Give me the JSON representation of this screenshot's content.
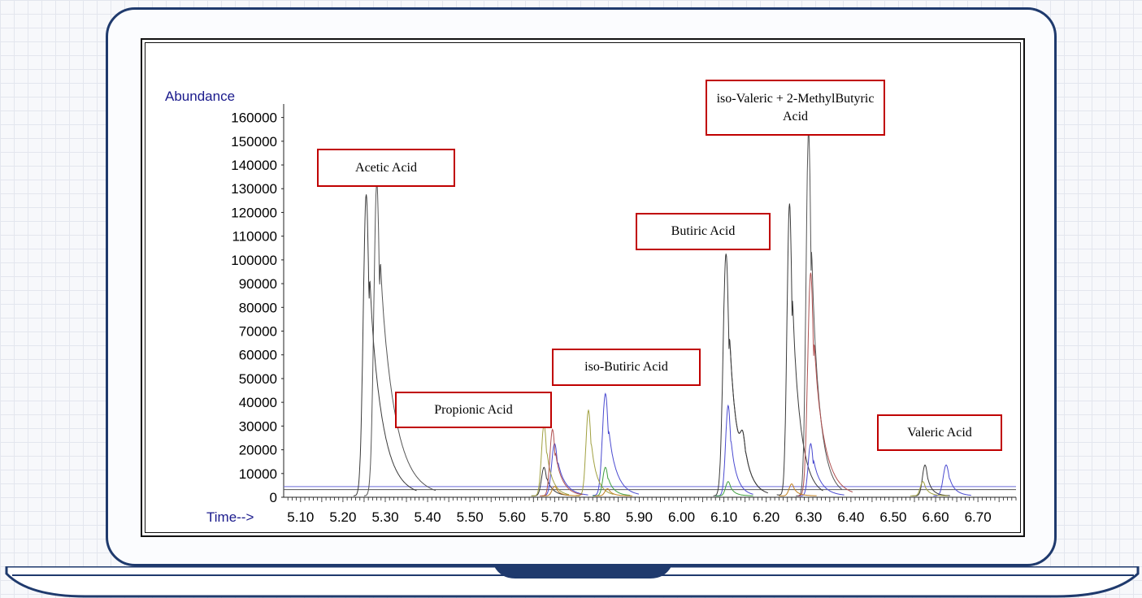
{
  "chart_data": {
    "type": "line",
    "ylabel": "Abundance",
    "xlabel": "Time-->",
    "xlim": [
      5.06,
      6.79
    ],
    "ylim": [
      0,
      165000
    ],
    "x_ticks": [
      "5.10",
      "5.20",
      "5.30",
      "5.40",
      "5.50",
      "5.60",
      "5.70",
      "5.80",
      "5.90",
      "6.00",
      "6.10",
      "6.20",
      "6.30",
      "6.40",
      "6.50",
      "6.60",
      "6.70"
    ],
    "y_ticks": [
      "0",
      "10000",
      "20000",
      "30000",
      "40000",
      "50000",
      "60000",
      "70000",
      "80000",
      "90000",
      "100000",
      "110000",
      "120000",
      "130000",
      "140000",
      "150000",
      "160000"
    ],
    "baselines": {
      "blue": 4500,
      "black": 3200
    },
    "series": [
      {
        "color": "#3a3a3a",
        "peaks": [
          {
            "x": 5.255,
            "y": 127000,
            "w": 0.007,
            "tail": 0.03
          },
          {
            "x": 5.675,
            "y": 12000,
            "w": 0.006,
            "tail": 0.015
          },
          {
            "x": 6.105,
            "y": 102000,
            "w": 0.007,
            "tail": 0.022
          },
          {
            "x": 6.145,
            "y": 12000,
            "w": 0.006,
            "tail": 0.015
          },
          {
            "x": 6.255,
            "y": 123000,
            "w": 0.006,
            "tail": 0.02
          },
          {
            "x": 6.575,
            "y": 13000,
            "w": 0.006,
            "tail": 0.012
          }
        ]
      },
      {
        "color": "#555555",
        "peaks": [
          {
            "x": 5.28,
            "y": 132000,
            "w": 0.007,
            "tail": 0.035
          },
          {
            "x": 6.3,
            "y": 154000,
            "w": 0.006,
            "tail": 0.02
          }
        ]
      },
      {
        "color": "#4a4ad0",
        "peaks": [
          {
            "x": 5.7,
            "y": 22000,
            "w": 0.007,
            "tail": 0.02
          },
          {
            "x": 5.82,
            "y": 43000,
            "w": 0.007,
            "tail": 0.02
          },
          {
            "x": 6.11,
            "y": 38000,
            "w": 0.006,
            "tail": 0.015
          },
          {
            "x": 6.305,
            "y": 22000,
            "w": 0.006,
            "tail": 0.02
          },
          {
            "x": 6.625,
            "y": 13000,
            "w": 0.007,
            "tail": 0.015
          }
        ]
      },
      {
        "color": "#a0a040",
        "peaks": [
          {
            "x": 5.675,
            "y": 30000,
            "w": 0.006,
            "tail": 0.015
          },
          {
            "x": 5.78,
            "y": 36000,
            "w": 0.006,
            "tail": 0.015
          },
          {
            "x": 6.57,
            "y": 6000,
            "w": 0.006,
            "tail": 0.012
          }
        ]
      },
      {
        "color": "#b05050",
        "peaks": [
          {
            "x": 5.695,
            "y": 28000,
            "w": 0.006,
            "tail": 0.018
          },
          {
            "x": 6.305,
            "y": 94000,
            "w": 0.007,
            "tail": 0.025
          }
        ]
      },
      {
        "color": "#40a040",
        "peaks": [
          {
            "x": 5.82,
            "y": 12000,
            "w": 0.006,
            "tail": 0.015
          },
          {
            "x": 6.11,
            "y": 6000,
            "w": 0.006,
            "tail": 0.012
          }
        ]
      },
      {
        "color": "#c08020",
        "peaks": [
          {
            "x": 5.7,
            "y": 4000,
            "w": 0.006,
            "tail": 0.012
          },
          {
            "x": 5.825,
            "y": 3000,
            "w": 0.006,
            "tail": 0.012
          },
          {
            "x": 6.26,
            "y": 5000,
            "w": 0.006,
            "tail": 0.012
          }
        ]
      }
    ],
    "annotations": [
      {
        "text": "Acetic Acid"
      },
      {
        "text": "Propionic Acid"
      },
      {
        "text": "iso-Butiric Acid"
      },
      {
        "text": "Butiric Acid"
      },
      {
        "text": "iso-Valeric  + 2-MethylButyric  Acid"
      },
      {
        "text": "Valeric Acid"
      }
    ]
  }
}
